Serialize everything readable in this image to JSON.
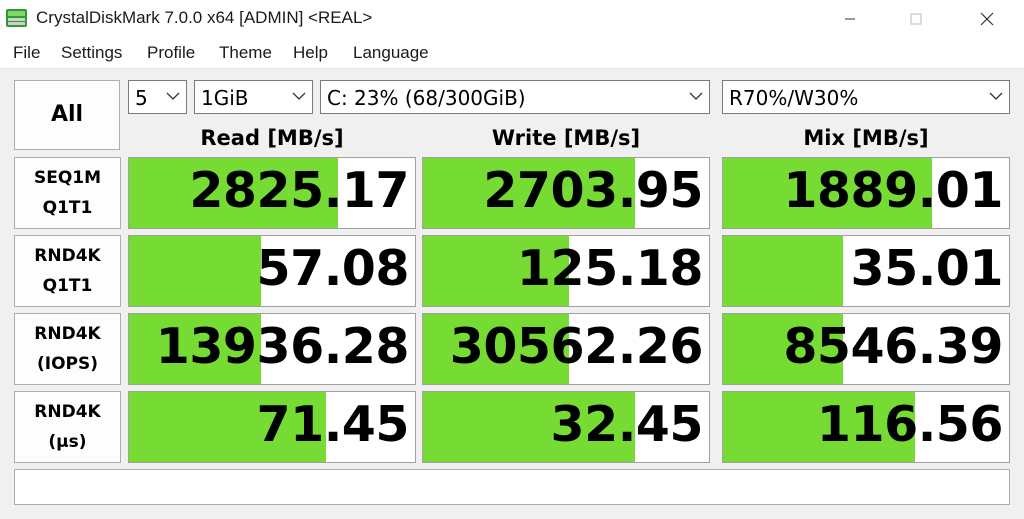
{
  "window": {
    "title": "CrystalDiskMark 7.0.0 x64 [ADMIN] <REAL>",
    "minimize_glyph": "—",
    "maximize_glyph": "☐",
    "close_glyph": "✕"
  },
  "menu": [
    "File",
    "Settings",
    "Profile",
    "Theme",
    "Help",
    "Language"
  ],
  "controls": {
    "all_label": "All",
    "count": "5",
    "size": "1GiB",
    "drive": "C: 23% (68/300GiB)",
    "mix": "R70%/W30%"
  },
  "columns": [
    "Read [MB/s]",
    "Write [MB/s]",
    "Mix [MB/s]"
  ],
  "rows": [
    {
      "line1": "SEQ1M",
      "line2": "Q1T1",
      "values": [
        "2825.17",
        "2703.95",
        "1889.01"
      ],
      "fill": [
        0.73,
        0.74,
        0.73
      ]
    },
    {
      "line1": "RND4K",
      "line2": "Q1T1",
      "values": [
        "57.08",
        "125.18",
        "35.01"
      ],
      "fill": [
        0.46,
        0.51,
        0.42
      ]
    },
    {
      "line1": "RND4K",
      "line2": "(IOPS)",
      "values": [
        "13936.28",
        "30562.26",
        "8546.39"
      ],
      "fill": [
        0.46,
        0.51,
        0.42
      ]
    },
    {
      "line1": "RND4K",
      "line2": "(μs)",
      "values": [
        "71.45",
        "32.45",
        "116.56"
      ],
      "fill": [
        0.69,
        0.74,
        0.67
      ]
    }
  ],
  "status": "",
  "colors": {
    "bar_fill": "#76dc34",
    "icon_green": "#3cb043"
  }
}
